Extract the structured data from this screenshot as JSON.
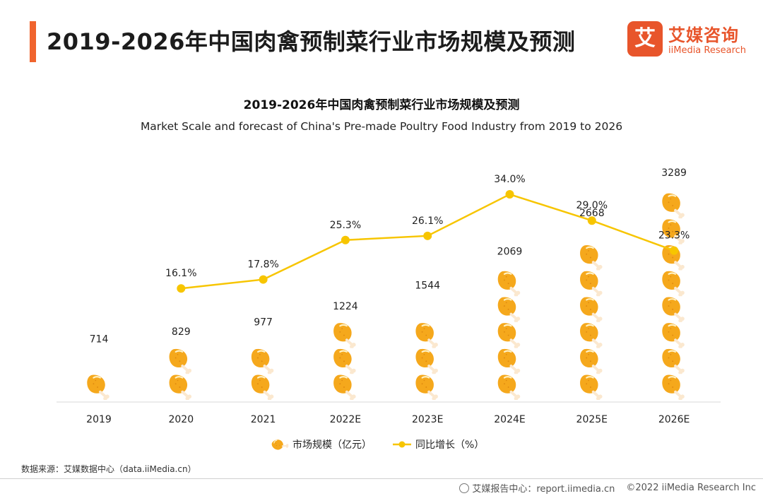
{
  "header": {
    "title": "2019-2026年中国肉禽预制菜行业市场规模及预测",
    "logo_mark": "艾",
    "logo_cn": "艾媒咨询",
    "logo_en": "iiMedia Research"
  },
  "chart_data": {
    "type": "bar+line",
    "title": "2019-2026年中国肉禽预制菜行业市场规模及预测",
    "subtitle": "Market Scale and forecast of China's Pre-made Poultry Food Industry from 2019 to 2026",
    "categories": [
      "2019",
      "2020",
      "2021",
      "2022E",
      "2023E",
      "2024E",
      "2025E",
      "2026E"
    ],
    "series": [
      {
        "name": "市场规模（亿元）",
        "type": "pictorial-bar",
        "values": [
          714,
          829,
          977,
          1224,
          1544,
          2069,
          2668,
          3289
        ],
        "labels": [
          "714",
          "829",
          "977",
          "1224",
          "1544",
          "2069",
          "2668",
          "3289"
        ]
      },
      {
        "name": "同比增长（%）",
        "type": "line",
        "values": [
          null,
          16.1,
          17.8,
          25.3,
          26.1,
          34.0,
          29.0,
          23.3
        ],
        "labels": [
          "",
          "16.1%",
          "17.8%",
          "25.3%",
          "26.1%",
          "34.0%",
          "29.0%",
          "23.3%"
        ]
      }
    ],
    "bar_ylim": [
      0,
      3289
    ],
    "line_ylim": [
      0,
      34
    ],
    "colors": {
      "bar": "#f5a81c",
      "line": "#f7c500"
    },
    "legend_position": "bottom-center"
  },
  "source": "数据来源：艾媒数据中心（data.iiMedia.cn）",
  "footer": {
    "report": "艾媒报告中心：report.iimedia.cn",
    "copyright": "©2022  iiMedia Research  Inc"
  }
}
